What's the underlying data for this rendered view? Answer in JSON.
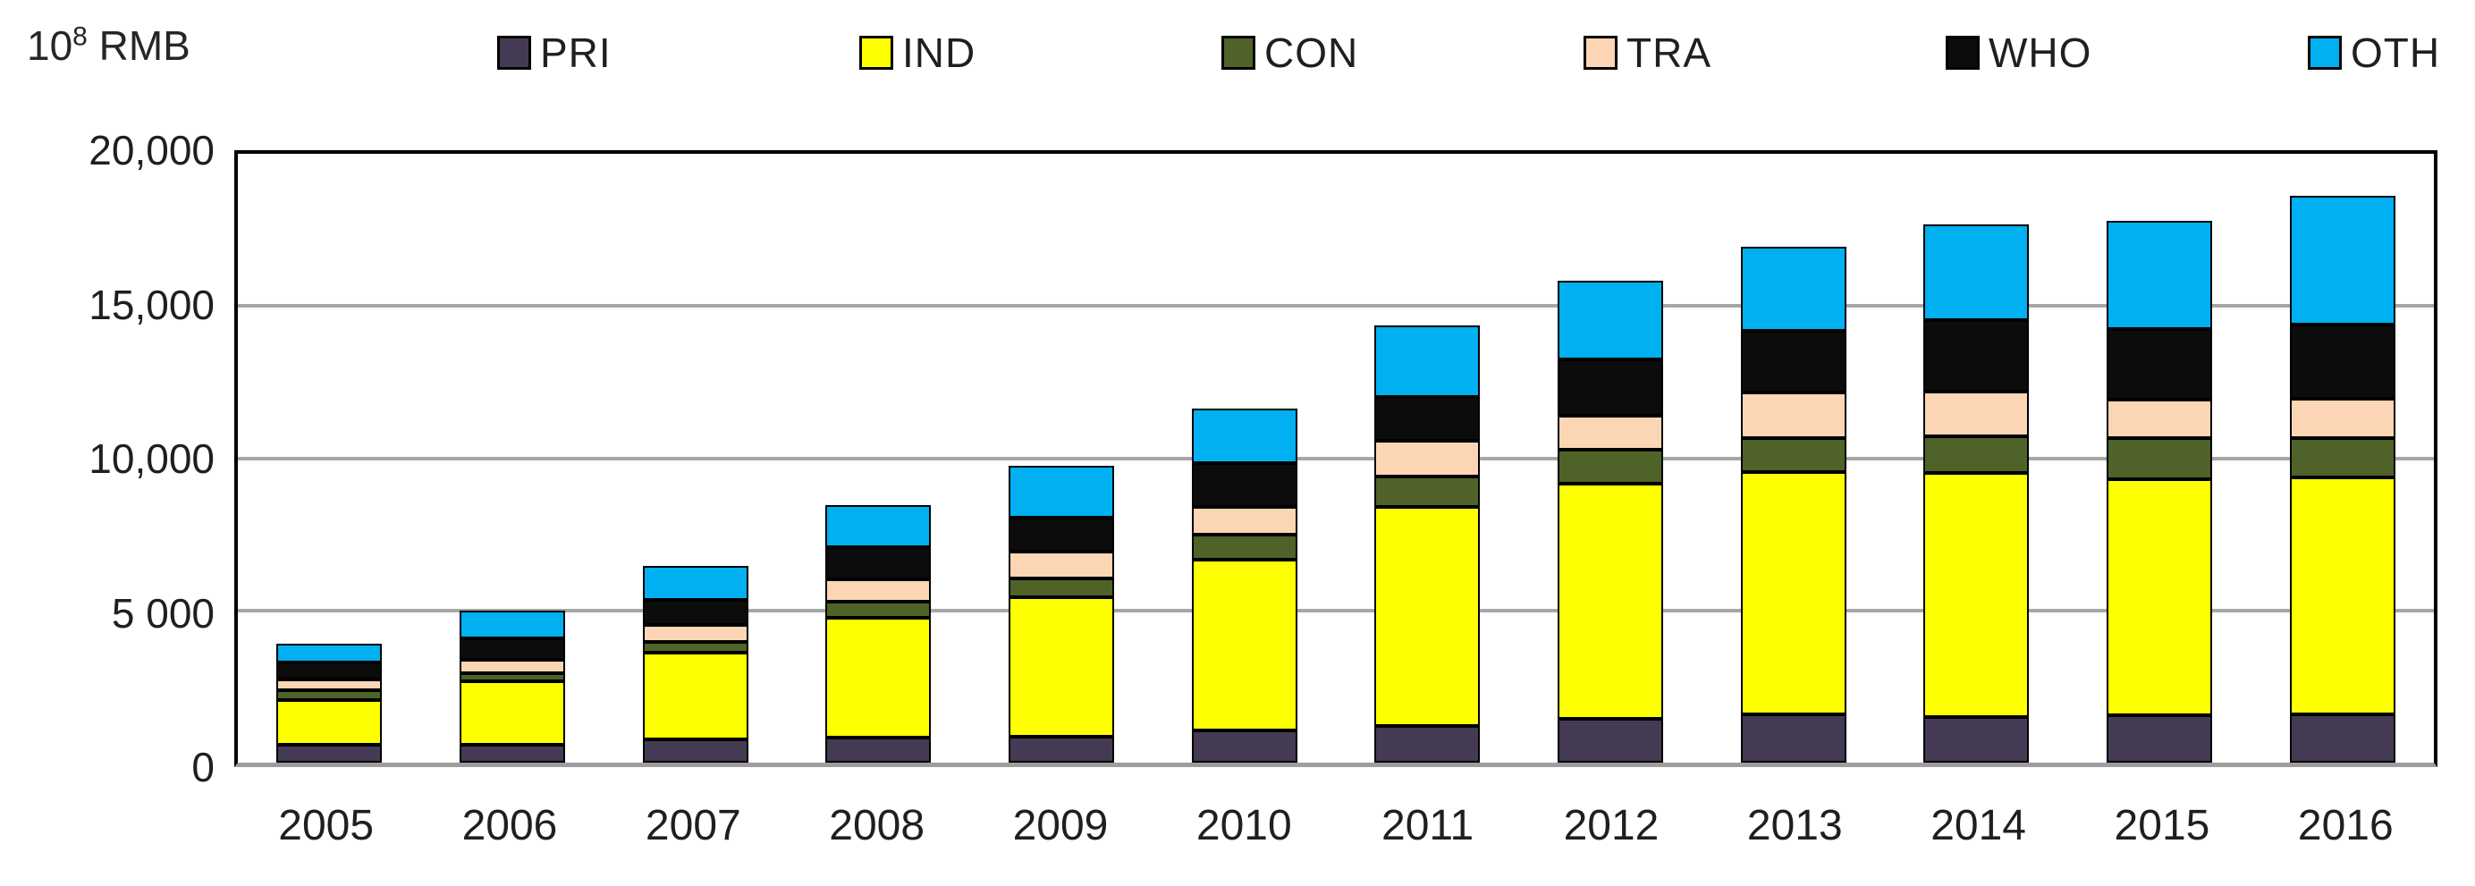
{
  "chart_data": {
    "type": "bar",
    "stacked": true,
    "ylabel": "10⁸ RMB",
    "ylabel_base": "10",
    "ylabel_exponent": "8",
    "ylabel_currency": "RMB",
    "categories": [
      "2005",
      "2006",
      "2007",
      "2008",
      "2009",
      "2010",
      "2011",
      "2012",
      "2013",
      "2014",
      "2015",
      "2016"
    ],
    "series": [
      {
        "name": "PRI",
        "color": "#443a54",
        "pattern": "solid",
        "values": [
          580,
          575,
          775,
          835,
          865,
          1055,
          1200,
          1445,
          1590,
          1495,
          1550,
          1585
        ]
      },
      {
        "name": "IND",
        "color": "#feff00",
        "pattern": "solid",
        "values": [
          1480,
          2105,
          2830,
          3910,
          4555,
          5600,
          7200,
          7730,
          7955,
          8030,
          7775,
          7780
        ]
      },
      {
        "name": "CON",
        "color": "#4f6228",
        "pattern": "solid",
        "values": [
          310,
          255,
          370,
          535,
          630,
          825,
          1000,
          1095,
          1115,
          1185,
          1325,
          1310
        ]
      },
      {
        "name": "TRA",
        "color": "#fcd5b4",
        "pattern": "solid",
        "values": [
          370,
          455,
          540,
          750,
          875,
          925,
          1165,
          1135,
          1505,
          1475,
          1265,
          1290
        ]
      },
      {
        "name": "WHO",
        "color": "#0c0c0c",
        "pattern": "dots",
        "values": [
          545,
          680,
          825,
          1045,
          1115,
          1435,
          1455,
          1840,
          2035,
          2355,
          2330,
          2425
        ]
      },
      {
        "name": "OTH",
        "color": "#00b0f0",
        "pattern": "solid",
        "values": [
          620,
          935,
          1115,
          1390,
          1700,
          1795,
          2330,
          2580,
          2735,
          3150,
          3540,
          4220
        ]
      }
    ],
    "y_ticks": [
      "20,000",
      "15,000",
      "10,000",
      "5 000",
      "0"
    ],
    "ylim": [
      0,
      20000
    ],
    "grid": true,
    "gridline_color": "#a6a6a6",
    "legend_position": "top"
  }
}
